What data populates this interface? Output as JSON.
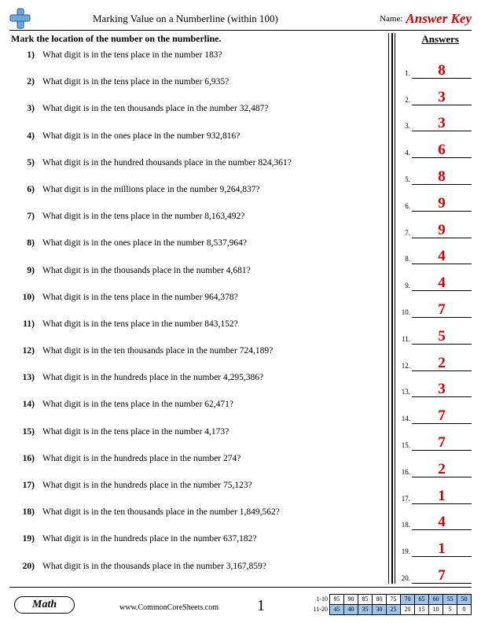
{
  "header": {
    "title": "Marking Value on a Numberline (within 100)",
    "name_label": "Name:",
    "answer_key": "Answer Key"
  },
  "instruction": "Mark the location of the number on the numberline.",
  "answers_heading": "Answers",
  "questions": [
    {
      "n": "1)",
      "t": "What digit is in the tens place in the number 183?"
    },
    {
      "n": "2)",
      "t": "What digit is in the tens place in the number 6,935?"
    },
    {
      "n": "3)",
      "t": "What digit is in the ten thousands place in the number 32,487?"
    },
    {
      "n": "4)",
      "t": "What digit is in the ones place in the number 932,816?"
    },
    {
      "n": "5)",
      "t": "What digit is in the hundred thousands place in the number 824,361?"
    },
    {
      "n": "6)",
      "t": "What digit is in the millions place in the number 9,264,837?"
    },
    {
      "n": "7)",
      "t": "What digit is in the tens place in the number 8,163,492?"
    },
    {
      "n": "8)",
      "t": "What digit is in the ones place in the number 8,537,964?"
    },
    {
      "n": "9)",
      "t": "What digit is in the thousands place in the number 4,681?"
    },
    {
      "n": "10)",
      "t": "What digit is in the tens place in the number 964,378?"
    },
    {
      "n": "11)",
      "t": "What digit is in the tens place in the number 843,152?"
    },
    {
      "n": "12)",
      "t": "What digit is in the ten thousands place in the number 724,189?"
    },
    {
      "n": "13)",
      "t": "What digit is in the hundreds place in the number 4,295,386?"
    },
    {
      "n": "14)",
      "t": "What digit is in the tens place in the number 62,471?"
    },
    {
      "n": "15)",
      "t": "What digit is in the tens place in the number 4,173?"
    },
    {
      "n": "16)",
      "t": "What digit is in the hundreds place in the number 274?"
    },
    {
      "n": "17)",
      "t": "What digit is in the hundreds place in the number 75,123?"
    },
    {
      "n": "18)",
      "t": "What digit is in the ten thousands place in the number 1,849,562?"
    },
    {
      "n": "19)",
      "t": "What digit is in the hundreds place in the number 637,182?"
    },
    {
      "n": "20)",
      "t": "What digit is in the thousands place in the number 3,167,859?"
    }
  ],
  "answers": [
    {
      "n": "1.",
      "v": "8"
    },
    {
      "n": "2.",
      "v": "3"
    },
    {
      "n": "3.",
      "v": "3"
    },
    {
      "n": "4.",
      "v": "6"
    },
    {
      "n": "5.",
      "v": "8"
    },
    {
      "n": "6.",
      "v": "9"
    },
    {
      "n": "7.",
      "v": "9"
    },
    {
      "n": "8.",
      "v": "4"
    },
    {
      "n": "9.",
      "v": "4"
    },
    {
      "n": "10.",
      "v": "7"
    },
    {
      "n": "11.",
      "v": "5"
    },
    {
      "n": "12.",
      "v": "2"
    },
    {
      "n": "13.",
      "v": "3"
    },
    {
      "n": "14.",
      "v": "7"
    },
    {
      "n": "15.",
      "v": "7"
    },
    {
      "n": "16.",
      "v": "2"
    },
    {
      "n": "17.",
      "v": "1"
    },
    {
      "n": "18.",
      "v": "4"
    },
    {
      "n": "19.",
      "v": "1"
    },
    {
      "n": "20.",
      "v": "7"
    }
  ],
  "footer": {
    "badge": "Math",
    "site": "www.CommonCoreSheets.com",
    "page_num": "1",
    "rows": [
      {
        "label": "1-10",
        "cells": [
          "95",
          "90",
          "85",
          "80",
          "75",
          "70",
          "65",
          "60",
          "55",
          "50"
        ],
        "hl": [
          5,
          6,
          7,
          8,
          9
        ]
      },
      {
        "label": "11-20",
        "cells": [
          "45",
          "40",
          "35",
          "30",
          "25",
          "20",
          "15",
          "10",
          "5",
          "0"
        ],
        "hl": [
          0,
          1,
          2,
          3,
          4
        ]
      }
    ]
  },
  "colors": {
    "answer_red": "#d40000",
    "grid_highlight": "#9fc4e8"
  }
}
